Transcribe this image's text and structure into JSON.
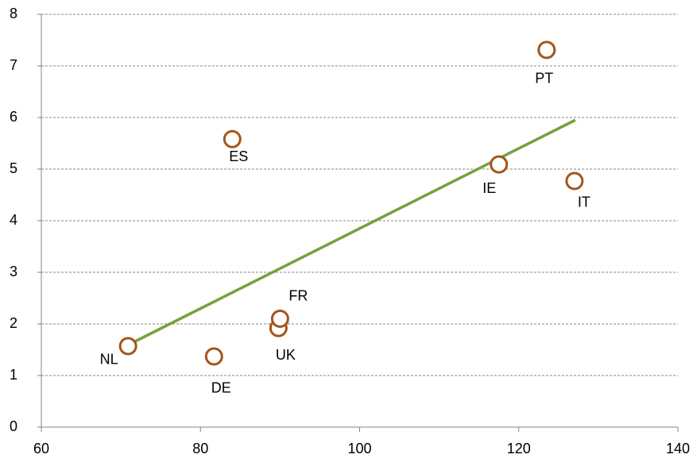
{
  "chart_data": {
    "type": "scatter",
    "xlim": [
      60,
      140
    ],
    "xticks": [
      60,
      80,
      100,
      120,
      140
    ],
    "ylim": [
      0,
      8
    ],
    "yticks": [
      0,
      1,
      2,
      3,
      4,
      5,
      6,
      7,
      8
    ],
    "grid": true,
    "series": [
      {
        "color": "#a5541a",
        "labels": [
          "NL",
          "DE",
          "UK",
          "FR",
          "ES",
          "IE",
          "IT",
          "PT"
        ],
        "x": [
          70.9,
          81.7,
          89.8,
          90.0,
          84.0,
          117.5,
          127.0,
          123.5
        ],
        "values": [
          1.57,
          1.37,
          1.92,
          2.1,
          5.58,
          5.09,
          4.77,
          7.31
        ]
      }
    ],
    "trendline": {
      "color": "#77a03c",
      "x": [
        71,
        127.1
      ],
      "values": [
        1.6,
        5.95
      ]
    }
  }
}
